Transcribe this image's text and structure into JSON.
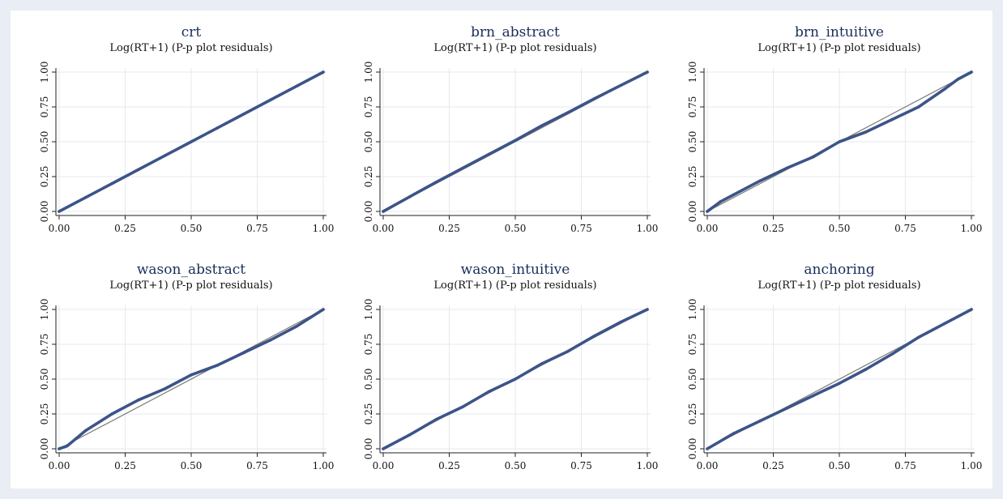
{
  "colors": {
    "series": "#3c5488",
    "reference": "#7a7a7a",
    "title": "#1a2e5a",
    "background": "#e8eef3"
  },
  "chart_data": [
    {
      "type": "line",
      "title": "crt",
      "subtitle": "Log(RT+1) (P-p plot residuals)",
      "xlim": [
        0,
        1
      ],
      "ylim": [
        0,
        1
      ],
      "xticks": [
        "0.00",
        "0.25",
        "0.50",
        "0.75",
        "1.00"
      ],
      "yticks": [
        "0.00",
        "0.25",
        "0.50",
        "0.75",
        "1.00"
      ],
      "grid": true,
      "reference_line": {
        "x": [
          0,
          1
        ],
        "y": [
          0,
          1
        ]
      },
      "series": [
        {
          "x": [
            0,
            0.1,
            0.2,
            0.3,
            0.4,
            0.5,
            0.6,
            0.7,
            0.8,
            0.9,
            1.0
          ],
          "values": [
            0,
            0.1,
            0.2,
            0.3,
            0.4,
            0.5,
            0.6,
            0.7,
            0.8,
            0.9,
            1.0
          ]
        }
      ]
    },
    {
      "type": "line",
      "title": "brn_abstract",
      "subtitle": "Log(RT+1) (P-p plot residuals)",
      "xlim": [
        0,
        1
      ],
      "ylim": [
        0,
        1
      ],
      "xticks": [
        "0.00",
        "0.25",
        "0.50",
        "0.75",
        "1.00"
      ],
      "yticks": [
        "0.00",
        "0.25",
        "0.50",
        "0.75",
        "1.00"
      ],
      "grid": true,
      "reference_line": {
        "x": [
          0,
          1
        ],
        "y": [
          0,
          1
        ]
      },
      "series": [
        {
          "x": [
            0,
            0.1,
            0.2,
            0.3,
            0.4,
            0.5,
            0.6,
            0.7,
            0.8,
            0.9,
            1.0
          ],
          "values": [
            0,
            0.105,
            0.21,
            0.31,
            0.41,
            0.51,
            0.615,
            0.71,
            0.81,
            0.905,
            1.0
          ]
        }
      ]
    },
    {
      "type": "line",
      "title": "brn_intuitive",
      "subtitle": "Log(RT+1) (P-p plot residuals)",
      "xlim": [
        0,
        1
      ],
      "ylim": [
        0,
        1
      ],
      "xticks": [
        "0.00",
        "0.25",
        "0.50",
        "0.75",
        "1.00"
      ],
      "yticks": [
        "0.00",
        "0.25",
        "0.50",
        "0.75",
        "1.00"
      ],
      "grid": true,
      "reference_line": {
        "x": [
          0,
          1
        ],
        "y": [
          0,
          1
        ]
      },
      "series": [
        {
          "x": [
            0,
            0.05,
            0.1,
            0.2,
            0.3,
            0.4,
            0.5,
            0.6,
            0.7,
            0.8,
            0.9,
            0.95,
            1.0
          ],
          "values": [
            0,
            0.07,
            0.12,
            0.22,
            0.31,
            0.39,
            0.5,
            0.57,
            0.66,
            0.75,
            0.88,
            0.95,
            1.0
          ]
        }
      ]
    },
    {
      "type": "line",
      "title": "wason_abstract",
      "subtitle": "Log(RT+1) (P-p plot residuals)",
      "xlim": [
        0,
        1
      ],
      "ylim": [
        0,
        1
      ],
      "xticks": [
        "0.00",
        "0.25",
        "0.50",
        "0.75",
        "1.00"
      ],
      "yticks": [
        "0.00",
        "0.25",
        "0.50",
        "0.75",
        "1.00"
      ],
      "grid": true,
      "reference_line": {
        "x": [
          0,
          1
        ],
        "y": [
          0,
          1
        ]
      },
      "series": [
        {
          "x": [
            0,
            0.03,
            0.1,
            0.2,
            0.3,
            0.4,
            0.5,
            0.6,
            0.7,
            0.8,
            0.9,
            1.0
          ],
          "values": [
            0,
            0.02,
            0.13,
            0.25,
            0.35,
            0.43,
            0.53,
            0.6,
            0.69,
            0.78,
            0.88,
            1.0
          ]
        }
      ]
    },
    {
      "type": "line",
      "title": "wason_intuitive",
      "subtitle": "Log(RT+1) (P-p plot residuals)",
      "xlim": [
        0,
        1
      ],
      "ylim": [
        0,
        1
      ],
      "xticks": [
        "0.00",
        "0.25",
        "0.50",
        "0.75",
        "1.00"
      ],
      "yticks": [
        "0.00",
        "0.25",
        "0.50",
        "0.75",
        "1.00"
      ],
      "grid": true,
      "reference_line": {
        "x": [
          0,
          1
        ],
        "y": [
          0,
          1
        ]
      },
      "series": [
        {
          "x": [
            0,
            0.1,
            0.2,
            0.3,
            0.4,
            0.5,
            0.6,
            0.7,
            0.8,
            0.9,
            1.0
          ],
          "values": [
            0,
            0.1,
            0.21,
            0.3,
            0.41,
            0.5,
            0.61,
            0.7,
            0.81,
            0.91,
            1.0
          ]
        }
      ]
    },
    {
      "type": "line",
      "title": "anchoring",
      "subtitle": "Log(RT+1) (P-p plot residuals)",
      "xlim": [
        0,
        1
      ],
      "ylim": [
        0,
        1
      ],
      "xticks": [
        "0.00",
        "0.25",
        "0.50",
        "0.75",
        "1.00"
      ],
      "yticks": [
        "0.00",
        "0.25",
        "0.50",
        "0.75",
        "1.00"
      ],
      "grid": true,
      "reference_line": {
        "x": [
          0,
          1
        ],
        "y": [
          0,
          1
        ]
      },
      "series": [
        {
          "x": [
            0,
            0.1,
            0.2,
            0.3,
            0.4,
            0.5,
            0.6,
            0.7,
            0.8,
            0.9,
            1.0
          ],
          "values": [
            0,
            0.11,
            0.2,
            0.29,
            0.38,
            0.47,
            0.57,
            0.68,
            0.8,
            0.9,
            1.0
          ]
        }
      ]
    }
  ]
}
